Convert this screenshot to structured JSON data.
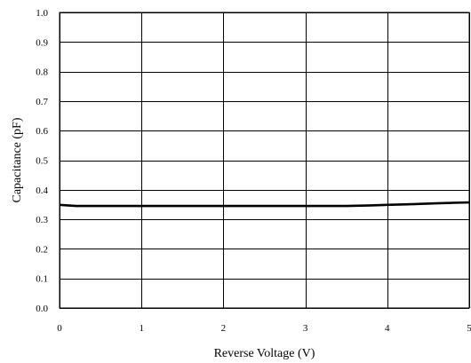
{
  "chart_data": {
    "type": "line",
    "title": "",
    "xlabel": "Reverse Voltage (V)",
    "ylabel": "Capacitance (pF)",
    "xlim": [
      0,
      5
    ],
    "ylim": [
      0,
      1
    ],
    "grid": true,
    "legend": "none",
    "x_ticks": [
      "0",
      "1",
      "2",
      "3",
      "4",
      "5"
    ],
    "y_ticks": [
      "0.0",
      "0.1",
      "0.2",
      "0.3",
      "0.4",
      "0.5",
      "0.6",
      "0.7",
      "0.8",
      "0.9",
      "1.0"
    ],
    "series": [
      {
        "color": "#000000",
        "x": [
          0,
          0.1,
          0.2,
          0.5,
          1,
          1.5,
          2,
          2.5,
          3,
          3.5,
          3.8,
          4.0,
          4.3,
          4.6,
          4.8,
          5.0
        ],
        "y": [
          0.349,
          0.347,
          0.345,
          0.345,
          0.345,
          0.345,
          0.345,
          0.345,
          0.345,
          0.345,
          0.347,
          0.349,
          0.351,
          0.354,
          0.356,
          0.357
        ]
      }
    ]
  }
}
